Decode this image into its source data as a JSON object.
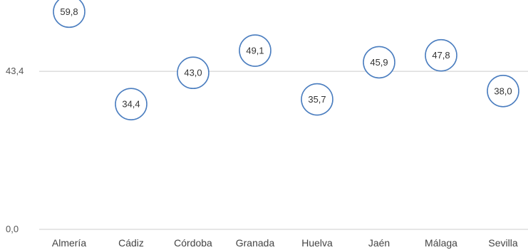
{
  "chart_data": {
    "type": "scatter",
    "categories": [
      "Almería",
      "Cádiz",
      "Córdoba",
      "Granada",
      "Huelva",
      "Jaén",
      "Málaga",
      "Sevilla"
    ],
    "values": [
      59.8,
      34.4,
      43.0,
      49.1,
      35.7,
      45.9,
      47.8,
      38.0
    ],
    "value_labels": [
      "59,8",
      "34,4",
      "43,0",
      "49,1",
      "35,7",
      "45,9",
      "47,8",
      "38,0"
    ],
    "y_ticks": [
      {
        "value": 0,
        "label": "0,0"
      },
      {
        "value": 43.4,
        "label": "43,4"
      }
    ],
    "ylim": [
      0,
      63
    ],
    "grid": true,
    "legend": "none",
    "colors": {
      "marker_stroke": "#4a7dbf",
      "marker_fill": "#ffffff",
      "gridline": "#cccccc"
    }
  }
}
